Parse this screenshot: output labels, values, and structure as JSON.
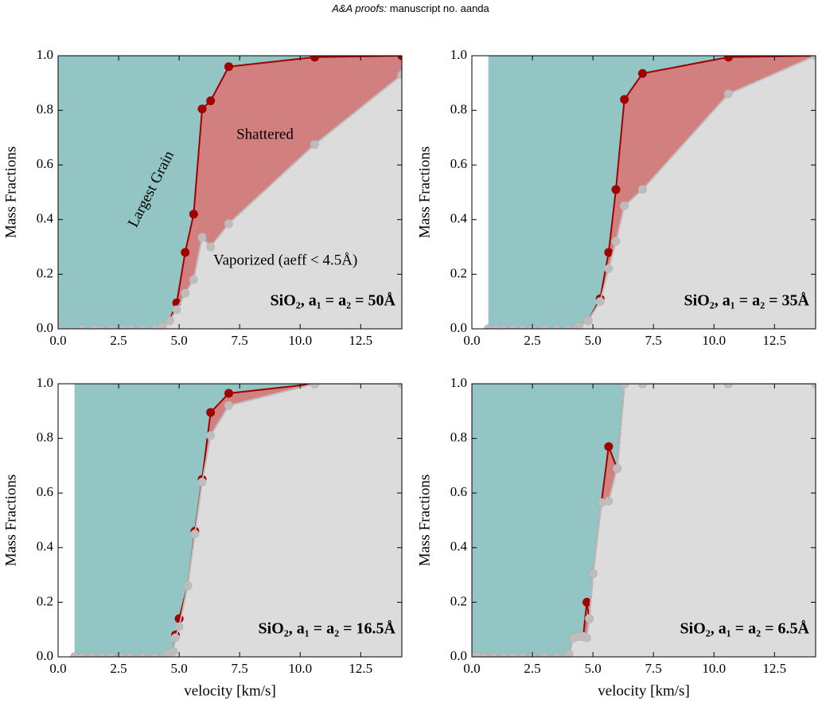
{
  "header": {
    "journal": "A&A proofs:",
    "manuscript": "manuscript no. aanda"
  },
  "chart_data": [
    {
      "type": "area",
      "ylabel": "Mass Fractions",
      "x": [
        0.0,
        1.0,
        1.5,
        1.8,
        2.2,
        2.7,
        3.0,
        3.5,
        4.0,
        4.3,
        4.6,
        4.9,
        5.25,
        5.6,
        5.95,
        6.3,
        7.05,
        10.6,
        14.2
      ],
      "series": [
        {
          "color": "#a00000",
          "fill": "#d27f7f",
          "values": [
            0,
            0,
            0,
            0,
            0,
            0,
            0,
            0,
            0,
            0.01,
            0.03,
            0.095,
            0.28,
            0.42,
            0.805,
            0.835,
            0.96,
            0.995,
            1.0
          ]
        },
        {
          "color": "#bdbdbd",
          "fill": "#dcdcdc",
          "values": [
            0,
            0,
            0,
            0,
            0,
            0,
            0,
            0,
            0,
            0.01,
            0.03,
            0.07,
            0.13,
            0.18,
            0.335,
            0.3,
            0.385,
            0.675,
            0.93
          ]
        }
      ],
      "top_fill": "#94c5c5",
      "label": "SiO₂, a₁ = a₂ = 50Å",
      "annotations": [
        "Largest Grain",
        "Shattered",
        "Vaporized (aeff < 4.5Å)"
      ],
      "xlim": [
        0,
        14.2
      ],
      "ylim": [
        0,
        1
      ],
      "xticks": [
        {
          "value": 0,
          "label": "0.0"
        },
        2.5,
        {
          "value": 5,
          "label": "5.0"
        },
        7.5,
        {
          "value": 10,
          "label": "10.0"
        },
        12.5
      ],
      "yticks": [
        {
          "value": 0,
          "label": "0.0"
        },
        0.2,
        0.4,
        0.6,
        0.8,
        {
          "value": 1,
          "label": "1.0"
        }
      ]
    },
    {
      "type": "area",
      "ylabel": "Mass Fractions",
      "x": [
        0.68,
        1.0,
        1.3,
        1.7,
        2.1,
        2.5,
        3.0,
        3.5,
        4.0,
        4.4,
        4.8,
        5.3,
        5.65,
        5.95,
        6.3,
        7.05,
        10.6,
        14.2
      ],
      "series": [
        {
          "color": "#a00000",
          "fill": "#d27f7f",
          "values": [
            0,
            0,
            0,
            0,
            0,
            0,
            0,
            0,
            0,
            0.01,
            0.03,
            0.11,
            0.28,
            0.51,
            0.84,
            0.935,
            0.995,
            1.0
          ]
        },
        {
          "color": "#bdbdbd",
          "fill": "#dcdcdc",
          "values": [
            0,
            0,
            0,
            0,
            0,
            0,
            0,
            0,
            0,
            0.01,
            0.03,
            0.1,
            0.22,
            0.32,
            0.45,
            0.51,
            0.86,
            1.0
          ]
        }
      ],
      "top_fill": "#94c5c5",
      "label": "SiO₂, a₁ = a₂ = 35Å",
      "xlim": [
        0,
        14.2
      ],
      "ylim": [
        0,
        1
      ],
      "xticks": [
        {
          "value": 0,
          "label": "0.0"
        },
        2.5,
        {
          "value": 5,
          "label": "5.0"
        },
        7.5,
        {
          "value": 10,
          "label": "10.0"
        },
        12.5
      ],
      "yticks": [
        {
          "value": 0,
          "label": "0.0"
        },
        0.2,
        0.4,
        0.6,
        0.8,
        {
          "value": 1,
          "label": "1.0"
        }
      ]
    },
    {
      "type": "area",
      "ylabel": "Mass Fractions",
      "xlabel": "velocity [km/s]",
      "x": [
        0.68,
        1.0,
        1.4,
        1.8,
        2.2,
        2.6,
        3.0,
        3.5,
        4.0,
        4.5,
        4.75,
        4.85,
        5.0,
        5.35,
        5.65,
        5.95,
        6.3,
        7.05,
        10.6,
        14.2
      ],
      "series": [
        {
          "color": "#a00000",
          "fill": "#d27f7f",
          "values": [
            0,
            0,
            0,
            0,
            0,
            0,
            0,
            0,
            0,
            0.01,
            0.02,
            0.08,
            0.14,
            0.26,
            0.46,
            0.65,
            0.895,
            0.965,
            1.0,
            1.0
          ]
        },
        {
          "color": "#bdbdbd",
          "fill": "#dcdcdc",
          "values": [
            0,
            0,
            0,
            0,
            0,
            0,
            0,
            0,
            0,
            0.01,
            0.02,
            0.07,
            0.11,
            0.26,
            0.45,
            0.64,
            0.81,
            0.92,
            1.0,
            1.0
          ]
        }
      ],
      "top_fill": "#94c5c5",
      "label": "SiO₂, a₁ = a₂ = 16.5Å",
      "xlim": [
        0,
        14.2
      ],
      "ylim": [
        0,
        1
      ],
      "xticks": [
        {
          "value": 0,
          "label": "0.0"
        },
        2.5,
        {
          "value": 5,
          "label": "5.0"
        },
        7.5,
        {
          "value": 10,
          "label": "10.0"
        },
        12.5
      ],
      "yticks": [
        {
          "value": 0,
          "label": "0.0"
        },
        0.2,
        0.4,
        0.6,
        0.8,
        {
          "value": 1,
          "label": "1.0"
        }
      ]
    },
    {
      "type": "area",
      "ylabel": "Mass Fractions",
      "xlabel": "velocity [km/s]",
      "x": [
        0.0,
        0.2,
        0.5,
        0.9,
        1.3,
        1.7,
        2.1,
        2.5,
        3.0,
        3.5,
        4.0,
        4.2,
        4.4,
        4.6,
        4.75,
        4.85,
        5.0,
        5.35,
        5.65,
        6.0,
        6.3,
        7.05,
        10.6,
        14.2
      ],
      "series": [
        {
          "color": "#a00000",
          "fill": "#d27f7f",
          "values": [
            0,
            0,
            0,
            0,
            0,
            0,
            0,
            0,
            0,
            0,
            0.01,
            0.07,
            0.075,
            0.075,
            0.2,
            0.14,
            0.305,
            0.565,
            0.77,
            0.69,
            1.0,
            1.0,
            1.0,
            1.0
          ]
        },
        {
          "color": "#bdbdbd",
          "fill": "#dcdcdc",
          "values": [
            0,
            0,
            0,
            0,
            0,
            0,
            0,
            0,
            0,
            0,
            0.01,
            0.07,
            0.075,
            0.075,
            0.07,
            0.14,
            0.305,
            0.565,
            0.57,
            0.69,
            1.0,
            1.0,
            1.0,
            1.0
          ]
        }
      ],
      "top_fill": "#94c5c5",
      "label": "SiO₂, a₁ = a₂ = 6.5Å",
      "xlim": [
        0,
        14.2
      ],
      "ylim": [
        0,
        1
      ],
      "xticks": [
        {
          "value": 0,
          "label": "0.0"
        },
        2.5,
        {
          "value": 5,
          "label": "5.0"
        },
        7.5,
        {
          "value": 10,
          "label": "10.0"
        },
        12.5
      ],
      "yticks": [
        {
          "value": 0,
          "label": "0.0"
        },
        0.2,
        0.4,
        0.6,
        0.8,
        {
          "value": 1,
          "label": "1.0"
        }
      ]
    }
  ]
}
